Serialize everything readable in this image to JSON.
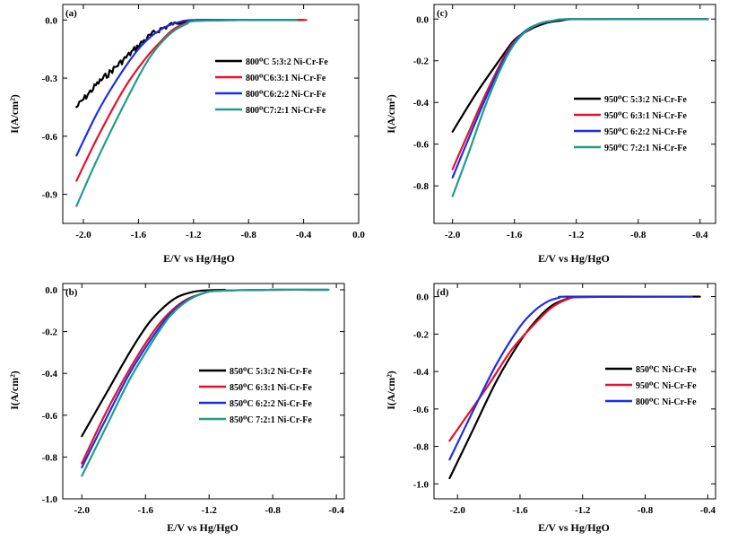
{
  "colors": {
    "black": "#000000",
    "red": "#e8102a",
    "blue": "#1a2fe6",
    "green": "#1f9d8a"
  },
  "chart_data": [
    {
      "type": "line",
      "panel_label": "(a)",
      "xlabel": "E/V vs Hg/HgO",
      "ylabel": "I(A/cm²)",
      "xlim": [
        -2.15,
        0.0
      ],
      "ylim": [
        -1.05,
        0.08
      ],
      "xticks": [
        -2.0,
        -1.6,
        -1.2,
        -0.8,
        -0.4,
        0.0
      ],
      "xtick_labels": [
        "-2.0",
        "-1.6",
        "-1.2",
        "-0.8",
        "-0.4",
        "0.0"
      ],
      "yticks": [
        0.0,
        -0.3,
        -0.6,
        -0.9
      ],
      "ytick_labels": [
        "0.0",
        "-0.3",
        "-0.6",
        "-0.9"
      ],
      "legend_position": "right",
      "series": [
        {
          "name": "800°C 5:3:2 Ni-Cr-Fe",
          "legend_text": "800⁰C 5:3:2 Ni-Cr-Fe",
          "color": "black",
          "noisy": true,
          "x": [
            -2.05,
            -1.9,
            -1.7,
            -1.55,
            -1.45,
            -1.35,
            -1.25,
            -1.15,
            -0.8,
            -0.4
          ],
          "y": [
            -0.45,
            -0.33,
            -0.2,
            -0.1,
            -0.05,
            -0.02,
            -0.005,
            0.0,
            0.0,
            0.0
          ]
        },
        {
          "name": "800°C 6:3:1 Ni-Cr-Fe",
          "legend_text": "800⁰C6:3:1 Ni-Cr-Fe",
          "color": "red",
          "noisy": false,
          "x": [
            -2.05,
            -1.9,
            -1.7,
            -1.55,
            -1.45,
            -1.35,
            -1.25,
            -1.2,
            -0.8,
            -0.38
          ],
          "y": [
            -0.83,
            -0.61,
            -0.35,
            -0.2,
            -0.12,
            -0.05,
            -0.015,
            -0.005,
            0.0,
            0.0
          ]
        },
        {
          "name": "800°C 6:2:2 Ni-Cr-Fe",
          "legend_text": "800⁰C6:2:2 Ni-Cr-Fe",
          "color": "blue",
          "noisy": false,
          "x": [
            -2.05,
            -1.9,
            -1.75,
            -1.6,
            -1.5,
            -1.4,
            -1.3,
            -1.2,
            -0.8,
            -0.45
          ],
          "y": [
            -0.7,
            -0.48,
            -0.3,
            -0.15,
            -0.08,
            -0.035,
            -0.01,
            0.0,
            0.0,
            0.0
          ]
        },
        {
          "name": "800°C 7:2:1 Ni-Cr-Fe",
          "legend_text": "800⁰C7:2:1 Ni-Cr-Fe",
          "color": "green",
          "noisy": false,
          "x": [
            -2.05,
            -1.9,
            -1.7,
            -1.55,
            -1.45,
            -1.35,
            -1.25,
            -1.18,
            -0.8,
            -0.45
          ],
          "y": [
            -0.96,
            -0.72,
            -0.43,
            -0.23,
            -0.13,
            -0.06,
            -0.02,
            -0.005,
            0.0,
            0.0
          ]
        }
      ]
    },
    {
      "type": "line",
      "panel_label": "(c)",
      "xlabel": "E/V vs Hg/HgO",
      "ylabel": "I(A/cm²)",
      "xlim": [
        -2.12,
        -0.3
      ],
      "ylim": [
        -0.98,
        0.07
      ],
      "xticks": [
        -2.0,
        -1.6,
        -1.2,
        -0.8,
        -0.4
      ],
      "xtick_labels": [
        "-2.0",
        "-1.6",
        "-1.2",
        "-0.8",
        "-0.4"
      ],
      "yticks": [
        0.0,
        -0.2,
        -0.4,
        -0.6,
        -0.8
      ],
      "ytick_labels": [
        "0.0",
        "-0.2",
        "-0.4",
        "-0.6",
        "-0.8"
      ],
      "legend_position": "right",
      "series": [
        {
          "name": "950°C 5:3:2 Ni-Cr-Fe",
          "legend_text": "950⁰C 5:3:2 Ni-Cr-Fe",
          "color": "black",
          "noisy": false,
          "x": [
            -2.0,
            -1.85,
            -1.7,
            -1.6,
            -1.5,
            -1.4,
            -1.3,
            -1.2,
            -0.8,
            -0.35
          ],
          "y": [
            -0.54,
            -0.36,
            -0.2,
            -0.1,
            -0.05,
            -0.02,
            -0.007,
            0.0,
            0.0,
            0.0
          ]
        },
        {
          "name": "950°C 6:3:1 Ni-Cr-Fe",
          "legend_text": "950⁰C 6:3:1 Ni-Cr-Fe",
          "color": "red",
          "noisy": false,
          "x": [
            -2.0,
            -1.9,
            -1.78,
            -1.65,
            -1.55,
            -1.45,
            -1.35,
            -1.25,
            -0.8,
            -0.35
          ],
          "y": [
            -0.72,
            -0.55,
            -0.35,
            -0.16,
            -0.07,
            -0.025,
            -0.008,
            0.0,
            0.0,
            0.0
          ]
        },
        {
          "name": "950°C 6:2:2 Ni-Cr-Fe",
          "legend_text": "950⁰C 6:2:2 Ni-Cr-Fe",
          "color": "blue",
          "noisy": false,
          "x": [
            -2.0,
            -1.9,
            -1.78,
            -1.65,
            -1.55,
            -1.45,
            -1.35,
            -1.25,
            -0.8,
            -0.35
          ],
          "y": [
            -0.76,
            -0.58,
            -0.37,
            -0.17,
            -0.07,
            -0.025,
            -0.008,
            0.0,
            0.0,
            0.0
          ]
        },
        {
          "name": "950°C 7:2:1 Ni-Cr-Fe",
          "legend_text": "950⁰C 7:2:1 Ni-Cr-Fe",
          "color": "green",
          "noisy": false,
          "x": [
            -2.0,
            -1.9,
            -1.78,
            -1.65,
            -1.55,
            -1.45,
            -1.35,
            -1.25,
            -0.8,
            -0.35
          ],
          "y": [
            -0.85,
            -0.65,
            -0.4,
            -0.18,
            -0.075,
            -0.025,
            -0.008,
            0.0,
            0.0,
            0.0
          ]
        }
      ]
    },
    {
      "type": "line",
      "panel_label": "(b)",
      "xlabel": "E/V vs Hg/HgO",
      "ylabel": "I(A/cm²)",
      "xlim": [
        -2.12,
        -0.35
      ],
      "ylim": [
        -1.0,
        0.03
      ],
      "xticks": [
        -2.0,
        -1.6,
        -1.2,
        -0.8,
        -0.4
      ],
      "xtick_labels": [
        "-2.0",
        "-1.6",
        "-1.2",
        "-0.8",
        "-0.4"
      ],
      "yticks": [
        0.0,
        -0.2,
        -0.4,
        -0.6,
        -0.8,
        -1.0
      ],
      "ytick_labels": [
        "0.0",
        "-0.2",
        "-0.4",
        "-0.6",
        "-0.8",
        "-1.0"
      ],
      "legend_position": "right",
      "series": [
        {
          "name": "850°C 5:3:2 Ni-Cr-Fe",
          "legend_text": "850⁰C 5:3:2 Ni-Cr-Fe",
          "color": "black",
          "noisy": false,
          "x": [
            -2.0,
            -1.85,
            -1.7,
            -1.58,
            -1.48,
            -1.4,
            -1.3,
            -1.2,
            -1.1
          ],
          "y": [
            -0.7,
            -0.5,
            -0.3,
            -0.16,
            -0.08,
            -0.035,
            -0.01,
            -0.002,
            0.0
          ]
        },
        {
          "name": "850°C 6:3:1 Ni-Cr-Fe",
          "legend_text": "850⁰C 6:3:1 Ni-Cr-Fe",
          "color": "red",
          "noisy": false,
          "x": [
            -2.0,
            -1.85,
            -1.7,
            -1.55,
            -1.45,
            -1.35,
            -1.25,
            -1.15,
            -0.8,
            -0.45
          ],
          "y": [
            -0.83,
            -0.59,
            -0.38,
            -0.2,
            -0.11,
            -0.05,
            -0.02,
            -0.005,
            0.0,
            0.0
          ]
        },
        {
          "name": "850°C 6:2:2 Ni-Cr-Fe",
          "legend_text": "850⁰C 6:2:2 Ni-Cr-Fe",
          "color": "blue",
          "noisy": false,
          "x": [
            -2.0,
            -1.85,
            -1.7,
            -1.55,
            -1.45,
            -1.35,
            -1.25,
            -1.15,
            -0.8,
            -0.45
          ],
          "y": [
            -0.85,
            -0.62,
            -0.4,
            -0.22,
            -0.12,
            -0.055,
            -0.02,
            -0.005,
            0.0,
            0.0
          ]
        },
        {
          "name": "850°C 7:2:1 Ni-Cr-Fe",
          "legend_text": "850⁰C 7:2:1 Ni-Cr-Fe",
          "color": "green",
          "noisy": false,
          "x": [
            -2.0,
            -1.85,
            -1.7,
            -1.55,
            -1.45,
            -1.35,
            -1.25,
            -1.15,
            -0.8,
            -0.45
          ],
          "y": [
            -0.89,
            -0.66,
            -0.43,
            -0.24,
            -0.13,
            -0.06,
            -0.02,
            -0.005,
            0.0,
            0.0
          ]
        }
      ]
    },
    {
      "type": "line",
      "panel_label": "(d)",
      "xlabel": "E/V vs Hg/HgO",
      "ylabel": "I(A/cm²)",
      "xlim": [
        -2.15,
        -0.35
      ],
      "ylim": [
        -1.08,
        0.07
      ],
      "xticks": [
        -2.0,
        -1.6,
        -1.2,
        -0.8,
        -0.4
      ],
      "xtick_labels": [
        "-2.0",
        "-1.6",
        "-1.2",
        "-0.8",
        "-0.4"
      ],
      "yticks": [
        0.0,
        -0.2,
        -0.4,
        -0.6,
        -0.8,
        -1.0
      ],
      "ytick_labels": [
        "0.0",
        "-0.2",
        "-0.4",
        "-0.6",
        "-0.8",
        "-1.0"
      ],
      "legend_position": "right",
      "series": [
        {
          "name": "850°C Ni-Cr-Fe",
          "legend_text": "850⁰C Ni-Cr-Fe",
          "color": "black",
          "noisy": false,
          "x": [
            -2.05,
            -1.9,
            -1.75,
            -1.6,
            -1.5,
            -1.4,
            -1.3,
            -1.25,
            -0.8,
            -0.45
          ],
          "y": [
            -0.97,
            -0.71,
            -0.45,
            -0.24,
            -0.13,
            -0.05,
            -0.012,
            -0.003,
            0.0,
            0.0
          ]
        },
        {
          "name": "950°C Ni-Cr-Fe",
          "legend_text": "950⁰C Ni-Cr-Fe",
          "color": "red",
          "noisy": false,
          "x": [
            -2.05,
            -1.95,
            -1.8,
            -1.65,
            -1.5,
            -1.4,
            -1.3,
            -1.2,
            -0.8,
            -0.55
          ],
          "y": [
            -0.77,
            -0.65,
            -0.47,
            -0.28,
            -0.14,
            -0.06,
            -0.015,
            -0.002,
            0.0,
            0.0
          ]
        },
        {
          "name": "800°C Ni-Cr-Fe",
          "legend_text": "800⁰C Ni-Cr-Fe",
          "color": "blue",
          "noisy": false,
          "x": [
            -2.05,
            -1.9,
            -1.75,
            -1.6,
            -1.5,
            -1.42,
            -1.35,
            -1.3,
            -0.8,
            -0.5
          ],
          "y": [
            -0.87,
            -0.61,
            -0.36,
            -0.16,
            -0.07,
            -0.025,
            -0.006,
            0.0,
            0.0,
            0.0
          ]
        }
      ]
    }
  ]
}
